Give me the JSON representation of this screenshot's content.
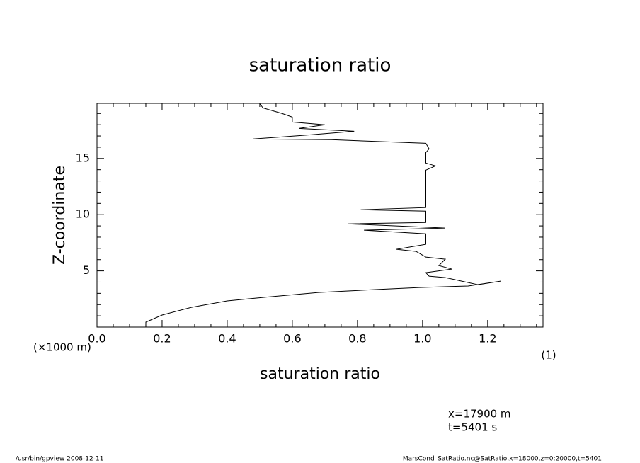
{
  "chart_data": {
    "type": "line",
    "title": "saturation ratio",
    "x_label": "saturation ratio",
    "y_label": "Z-coordinate",
    "y_unit": "(×1000 m)",
    "x_unit": "(1)",
    "annotations": [
      "x=17900 m",
      "t=5401 s"
    ],
    "footer_left": "/usr/bin/gpview  2008-12-11",
    "footer_right": "MarsCond_SatRatio.nc@SatRatio,x=18000,z=0:20000,t=5401",
    "xlim": [
      0,
      1.37
    ],
    "ylim": [
      0,
      19.9
    ],
    "xticks": [
      {
        "value": 0,
        "label": "0.0"
      },
      0.2,
      0.4,
      0.6,
      0.8,
      {
        "value": 1,
        "label": "1.0"
      },
      1.2
    ],
    "yticks": [
      5,
      10,
      15
    ],
    "x_minor_ticks": [
      0.05,
      0.1,
      0.15,
      0.25,
      0.3,
      0.35,
      0.45,
      0.5,
      0.55,
      0.65,
      0.7,
      0.75,
      0.85,
      0.9,
      0.95,
      1.05,
      1.1,
      1.15,
      1.25,
      1.3,
      1.35
    ],
    "y_minor_ticks": [
      1,
      2,
      3,
      4,
      6,
      7,
      8,
      9,
      11,
      12,
      13,
      14,
      16,
      17,
      18,
      19
    ],
    "y": [
      0,
      0.44,
      1.07,
      1.76,
      2.33,
      2.64,
      3.08,
      3.33,
      3.52,
      3.65,
      4.09,
      3.77,
      4.4,
      4.53,
      4.84,
      5.16,
      5.47,
      6.04,
      6.23,
      6.73,
      6.92,
      7.36,
      8.3,
      8.62,
      8.81,
      9.18,
      9.31,
      10.31,
      10.44,
      10.63,
      12.08,
      13.96,
      14.34,
      14.59,
      15.53,
      15.85,
      16.35,
      16.67,
      16.73,
      17.11,
      17.42,
      17.67,
      17.99,
      18.24,
      18.68,
      18.99,
      19.5,
      19.87
    ],
    "series": [
      {
        "color": "#000000",
        "values": [
          0.15,
          0.15,
          0.2,
          0.29,
          0.4,
          0.51,
          0.68,
          0.85,
          0.99,
          1.14,
          1.24,
          1.17,
          1.07,
          1.02,
          1.01,
          1.09,
          1.05,
          1.07,
          1.01,
          0.98,
          0.92,
          1.01,
          1.01,
          0.82,
          1.07,
          0.77,
          1.01,
          1.01,
          0.81,
          1.01,
          1.01,
          1.01,
          1.04,
          1.01,
          1.01,
          1.02,
          1.01,
          0.72,
          0.48,
          0.66,
          0.79,
          0.62,
          0.7,
          0.6,
          0.6,
          0.57,
          0.51,
          0.5
        ]
      }
    ]
  }
}
